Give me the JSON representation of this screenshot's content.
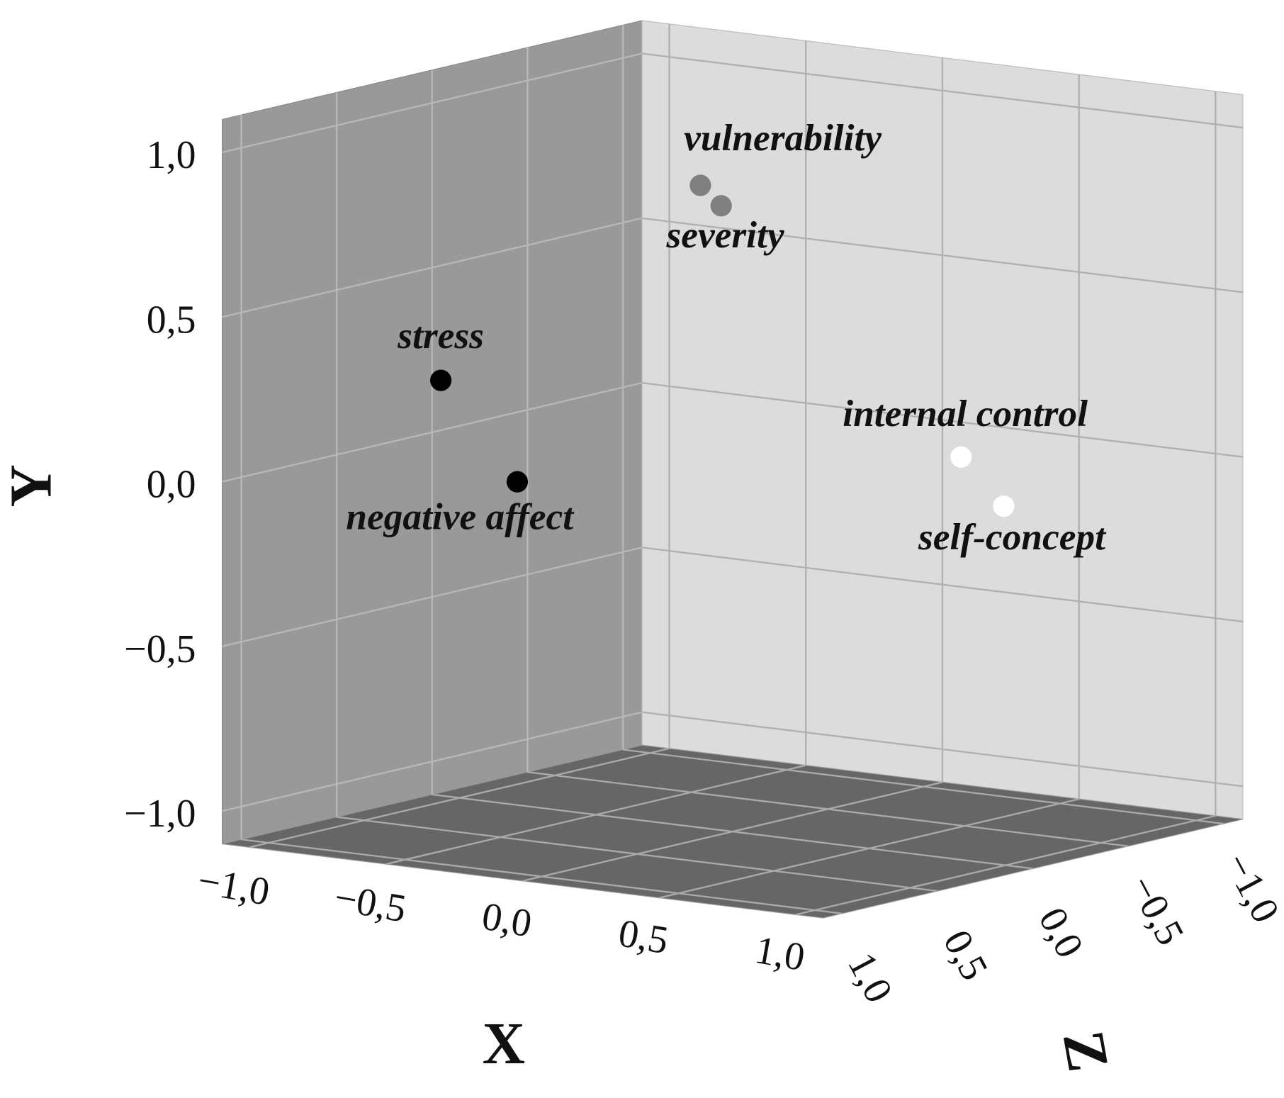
{
  "chart_data": {
    "type": "scatter3d",
    "xlabel": "X",
    "ylabel": "Y",
    "zlabel": "Z",
    "xlim": [
      -1.1,
      1.1
    ],
    "ylim": [
      -1.1,
      1.1
    ],
    "zlim": [
      -1.1,
      1.1
    ],
    "xticks": [
      {
        "value": -1,
        "label": "−1,0"
      },
      {
        "value": -0.5,
        "label": "−0,5"
      },
      {
        "value": 0,
        "label": "0,0"
      },
      {
        "value": 0.5,
        "label": "0,5"
      },
      {
        "value": 1,
        "label": "1,0"
      }
    ],
    "yticks": [
      {
        "value": -1,
        "label": "−1,0"
      },
      {
        "value": -0.5,
        "label": "−0,5"
      },
      {
        "value": 0,
        "label": "0,0"
      },
      {
        "value": 0.5,
        "label": "0,5"
      },
      {
        "value": 1,
        "label": "1,0"
      }
    ],
    "zticks": [
      {
        "value": -1,
        "label": "−1,0"
      },
      {
        "value": -0.5,
        "label": "−0,5"
      },
      {
        "value": 0,
        "label": "0,0"
      },
      {
        "value": 0.5,
        "label": "0,5"
      },
      {
        "value": 1,
        "label": "1,0"
      }
    ],
    "grid": true,
    "wall_colors": {
      "left": "#999999",
      "right": "#dcdcdc",
      "floor": "#666666"
    },
    "points": [
      {
        "label": "vulnerability",
        "color": "#808080",
        "x": 0.05,
        "y": 0.9,
        "z": 0.24
      },
      {
        "label": "severity",
        "color": "#808080",
        "x": 0.14,
        "y": 0.85,
        "z": 0.26
      },
      {
        "label": "stress",
        "color": "#000000",
        "x": -0.6,
        "y": 0.3,
        "z": 0.67
      },
      {
        "label": "negative affect",
        "color": "#000000",
        "x": -0.39,
        "y": 0.0,
        "z": 0.57
      },
      {
        "label": "internal control",
        "color": "#ffffff",
        "x": 0.76,
        "y": 0.1,
        "z": -0.11
      },
      {
        "label": "self-concept",
        "color": "#ffffff",
        "x": 0.86,
        "y": -0.05,
        "z": -0.19
      }
    ]
  }
}
